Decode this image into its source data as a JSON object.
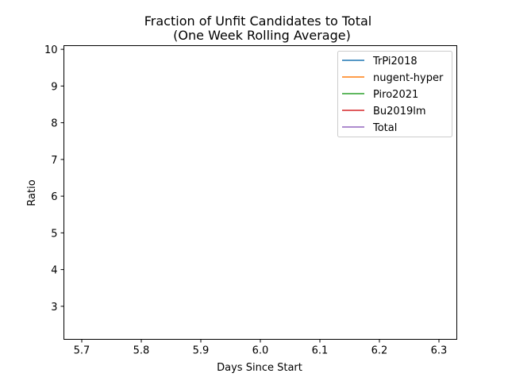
{
  "chart_data": {
    "type": "line",
    "title_line1": "Fraction of Unfit Candidates to Total",
    "title_line2": "(One Week Rolling Average)",
    "xlabel": "Days Since Start",
    "ylabel": "Ratio",
    "xlim": [
      5.67,
      6.33
    ],
    "ylim": [
      2.1,
      10.1
    ],
    "x_ticks": [
      5.7,
      5.8,
      5.9,
      6.0,
      6.1,
      6.2,
      6.3
    ],
    "x_tick_labels": [
      "5.7",
      "5.8",
      "5.9",
      "6.0",
      "6.1",
      "6.2",
      "6.3"
    ],
    "y_ticks": [
      3,
      4,
      5,
      6,
      7,
      8,
      9,
      10
    ],
    "y_tick_labels": [
      "3",
      "4",
      "5",
      "6",
      "7",
      "8",
      "9",
      "10"
    ],
    "grid": false,
    "legend_position": "top-right",
    "series": [
      {
        "name": "TrPi2018",
        "color": "#1f77b4",
        "x": [],
        "y": []
      },
      {
        "name": "nugent-hyper",
        "color": "#ff7f0e",
        "x": [],
        "y": []
      },
      {
        "name": "Piro2021",
        "color": "#2ca02c",
        "x": [],
        "y": []
      },
      {
        "name": "Bu2019lm",
        "color": "#d62728",
        "x": [],
        "y": []
      },
      {
        "name": "Total",
        "color": "#9467bd",
        "x": [],
        "y": []
      }
    ]
  }
}
